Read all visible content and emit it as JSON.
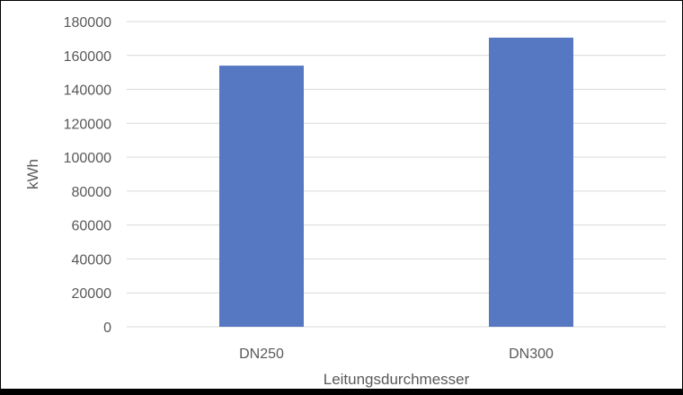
{
  "chart_data": {
    "type": "bar",
    "categories": [
      "DN250",
      "DN300"
    ],
    "series": [
      {
        "values": [
          154000,
          170500
        ]
      }
    ],
    "xlabel": "Leitungsdurchmesser",
    "ylabel": "kWh",
    "ylim": [
      0,
      180000
    ],
    "yticks": [
      "0",
      "20000",
      "40000",
      "60000",
      "80000",
      "100000",
      "120000",
      "140000",
      "160000",
      "180000"
    ],
    "grid": true,
    "legend": "none",
    "bar_color": "#5677c2",
    "grid_color": "#d9d9d9"
  }
}
